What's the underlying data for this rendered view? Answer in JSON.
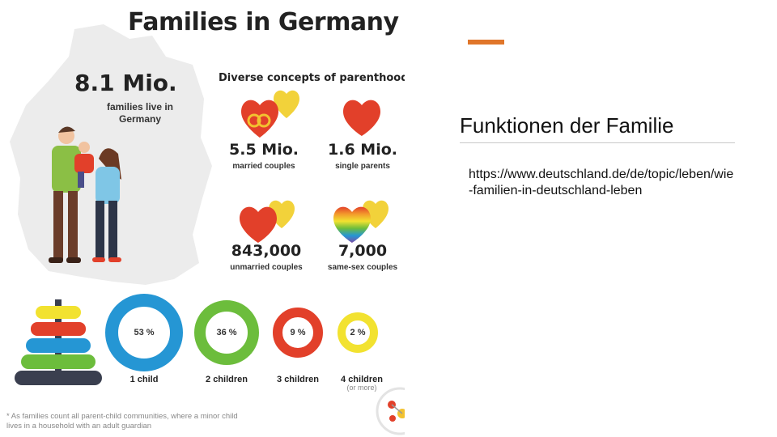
{
  "infographic": {
    "title": "Families in Germany",
    "total": {
      "value": "8.1 Mio.",
      "label": "families live in Germany"
    },
    "concepts_heading": "Diverse concepts of parenthood",
    "stats": [
      {
        "value": "5.5 Mio.",
        "label": "married couples",
        "icon": "wedding-rings-heart-icon"
      },
      {
        "value": "1.6 Mio.",
        "label": "single parents",
        "icon": "red-heart-icon"
      },
      {
        "value": "843,000",
        "label": "unmarried couples",
        "icon": "double-heart-icon"
      },
      {
        "value": "7,000",
        "label": "same-sex couples",
        "icon": "rainbow-heart-icon"
      }
    ],
    "children": [
      {
        "percent": "53 %",
        "label": "1 child",
        "color": "#2596d4"
      },
      {
        "percent": "36 %",
        "label": "2 children",
        "color": "#6cbd3c"
      },
      {
        "percent": "9 %",
        "label": "3 children",
        "color": "#e2402a"
      },
      {
        "percent": "2 %",
        "label": "4 children",
        "note": "(or more)",
        "color": "#f2e230"
      }
    ],
    "footnote": "* As families count all parent-child communities, where a minor child lives in a household with an adult guardian"
  },
  "slide": {
    "heading": "Funktionen der Familie",
    "source_url": "https://www.deutschland.de/de/topic/leben/wie-familien-in-deutschland-leben",
    "accent_color": "#e0762a"
  }
}
